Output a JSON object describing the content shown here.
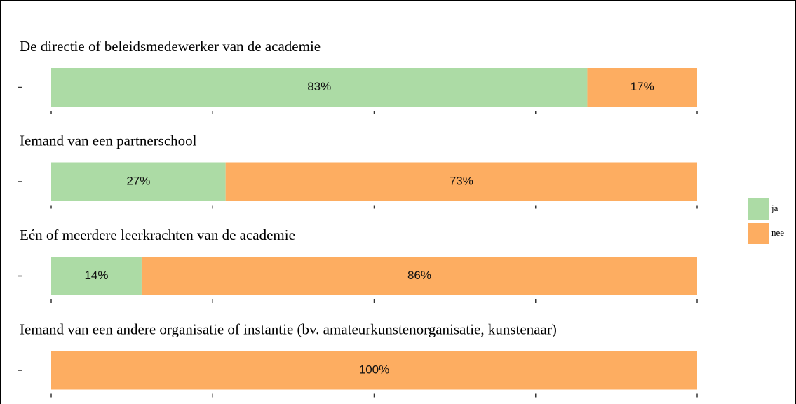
{
  "chart_data": [
    {
      "type": "bar",
      "orientation": "horizontal",
      "stacked": true,
      "title": "De directie of beleidsmedewerker van de academie",
      "categories": [
        null
      ],
      "series": [
        {
          "name": "ja",
          "color": "#acdba5",
          "values": [
            83
          ],
          "value_labels": [
            "83%"
          ]
        },
        {
          "name": "nee",
          "color": "#fdad61",
          "values": [
            17
          ],
          "value_labels": [
            "17%"
          ]
        }
      ],
      "xlim": [
        0,
        100
      ],
      "xticks": [
        0,
        25,
        50,
        75,
        100
      ]
    },
    {
      "type": "bar",
      "orientation": "horizontal",
      "stacked": true,
      "title": "Iemand van een partnerschool",
      "categories": [
        null
      ],
      "series": [
        {
          "name": "ja",
          "color": "#acdba5",
          "values": [
            27
          ],
          "value_labels": [
            "27%"
          ]
        },
        {
          "name": "nee",
          "color": "#fdad61",
          "values": [
            73
          ],
          "value_labels": [
            "73%"
          ]
        }
      ],
      "xlim": [
        0,
        100
      ],
      "xticks": [
        0,
        25,
        50,
        75,
        100
      ]
    },
    {
      "type": "bar",
      "orientation": "horizontal",
      "stacked": true,
      "title": "Eén of meerdere leerkrachten van de academie",
      "categories": [
        null
      ],
      "series": [
        {
          "name": "ja",
          "color": "#acdba5",
          "values": [
            14
          ],
          "value_labels": [
            "14%"
          ]
        },
        {
          "name": "nee",
          "color": "#fdad61",
          "values": [
            86
          ],
          "value_labels": [
            "86%"
          ]
        }
      ],
      "xlim": [
        0,
        100
      ],
      "xticks": [
        0,
        25,
        50,
        75,
        100
      ]
    },
    {
      "type": "bar",
      "orientation": "horizontal",
      "stacked": true,
      "title": "Iemand van een andere organisatie of instantie (bv. amateurkunstenorganisatie, kunstenaar)",
      "categories": [
        null
      ],
      "series": [
        {
          "name": "nee",
          "color": "#fdad61",
          "values": [
            100
          ],
          "value_labels": [
            "100%"
          ]
        }
      ],
      "xlim": [
        0,
        100
      ],
      "xticks": [
        0,
        25,
        50,
        75,
        100
      ]
    }
  ]
}
